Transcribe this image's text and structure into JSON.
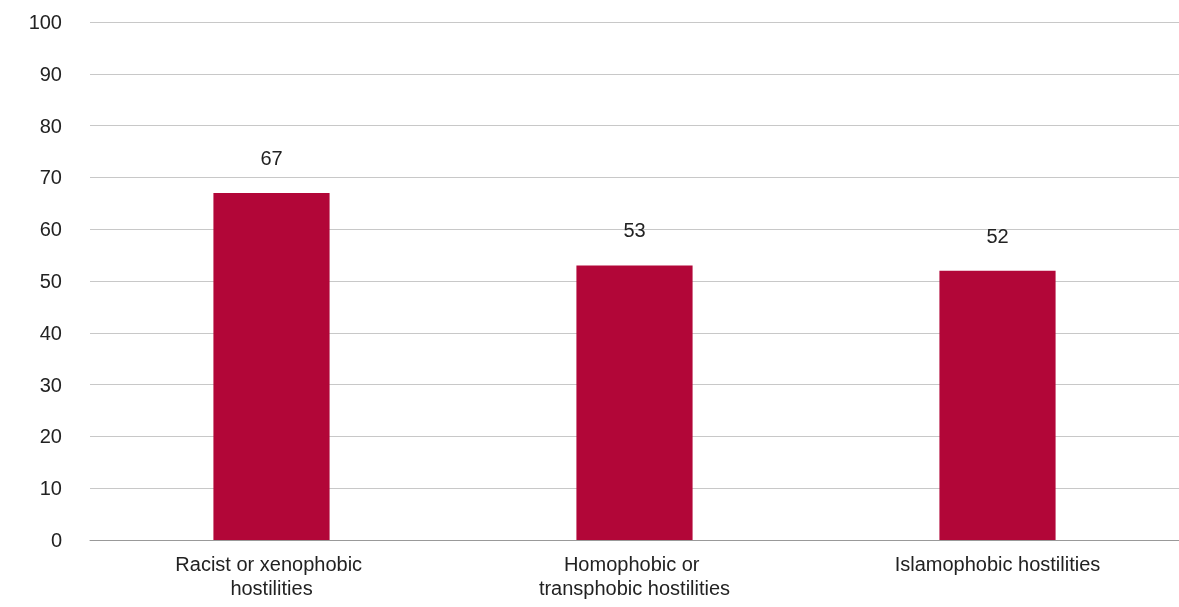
{
  "chart_data": {
    "type": "bar",
    "categories": [
      "Racist or xenophobic hostilities",
      "Homophobic or transphobic hostilities",
      "Islamophobic hostilities"
    ],
    "values": [
      67,
      53,
      52
    ],
    "color": "#b20638",
    "ylim": [
      0,
      100
    ],
    "yticks": [
      0,
      10,
      20,
      30,
      40,
      50,
      60,
      70,
      80,
      90,
      100
    ],
    "grid": "y",
    "data_labels": true
  }
}
